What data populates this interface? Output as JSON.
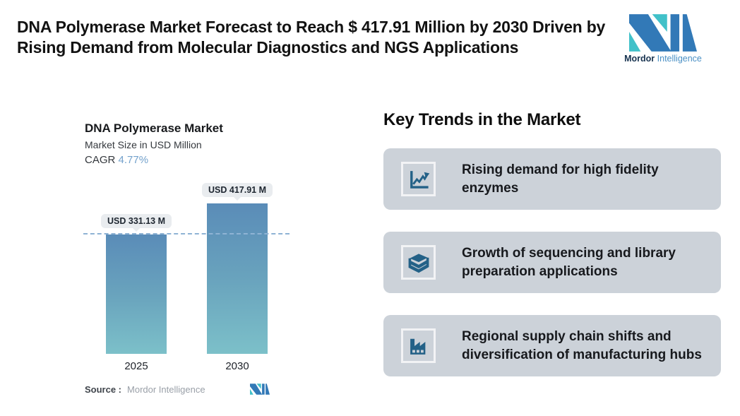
{
  "header": {
    "title": "DNA Polymerase Market Forecast to Reach $ 417.91 Million by 2030 Driven by Rising Demand from Molecular Diagnostics and NGS Applications",
    "logo": {
      "brand_bold": "Mordor",
      "brand_light": "Intelligence"
    }
  },
  "chart": {
    "title": "DNA Polymerase Market",
    "subtitle": "Market Size in USD Million",
    "cagr_label": "CAGR",
    "cagr_value": "4.77%",
    "source_label": "Source :",
    "source_value": "Mordor Intelligence"
  },
  "chart_data": {
    "type": "bar",
    "title": "DNA Polymerase Market",
    "subtitle": "Market Size in USD Million",
    "cagr": "4.77%",
    "categories": [
      "2025",
      "2030"
    ],
    "values": [
      331.13,
      417.91
    ],
    "value_labels": [
      "USD 331.13 M",
      "USD 417.91 M"
    ],
    "unit": "USD Million",
    "ylim": [
      0,
      417.91
    ],
    "reference_line": 331.13,
    "grid": false,
    "legend": false,
    "bar_gradient_top": "#5a8cb8",
    "bar_gradient_bottom": "#7cc0c9",
    "reference_line_color": "#8fb3d4",
    "value_label_bg": "#e9ecef"
  },
  "trends": {
    "heading": "Key Trends in the Market",
    "cards": [
      {
        "icon": "line-chart-icon",
        "text": "Rising demand for high fidelity enzymes"
      },
      {
        "icon": "books-stack-icon",
        "text": "Growth of sequencing and library preparation applications"
      },
      {
        "icon": "factory-icon",
        "text": "Regional supply chain shifts and diversification of manufacturing hubs"
      }
    ]
  },
  "colors": {
    "brand_blue": "#3279b7",
    "brand_teal": "#41c1c9",
    "card_background": "#ccd2d9",
    "icon_blue": "#236187",
    "cagr_blue": "#74a2cc"
  }
}
